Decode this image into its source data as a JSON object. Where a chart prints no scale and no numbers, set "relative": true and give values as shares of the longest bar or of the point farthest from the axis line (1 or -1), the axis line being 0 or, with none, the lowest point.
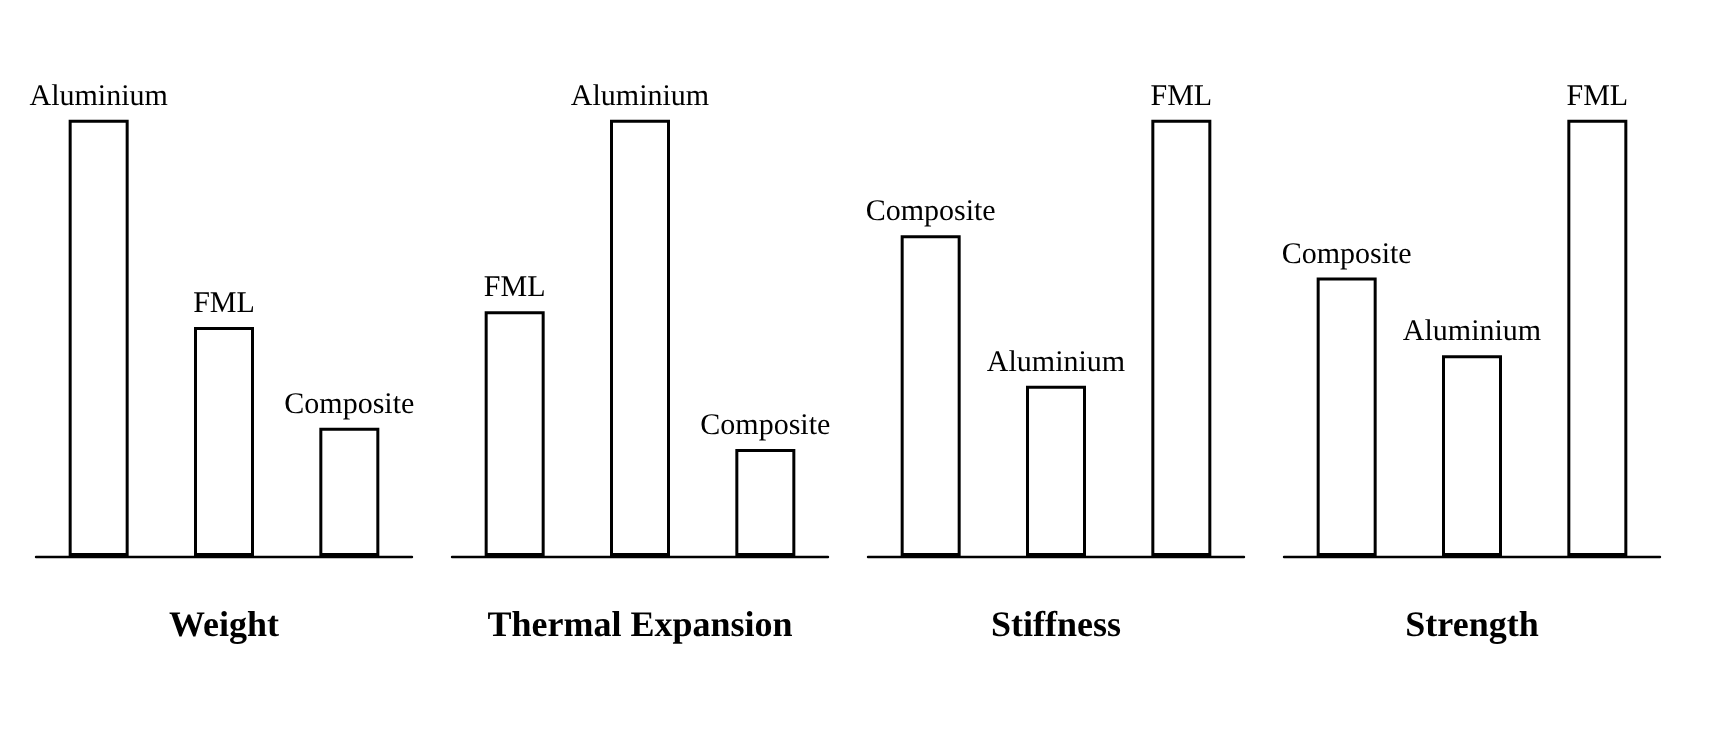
{
  "chart_data": [
    {
      "type": "bar",
      "relative": true,
      "stacked": true,
      "xlabel": "Weight",
      "categories": [
        null,
        null,
        null
      ],
      "grid": false,
      "legend": false,
      "series": [
        {
          "name": "Aluminium",
          "color": "#ffffff",
          "values": [
            1,
            null,
            null
          ]
        },
        {
          "name": "FML",
          "color": "#ffffff",
          "values": [
            null,
            0.525,
            null
          ]
        },
        {
          "name": "Composite",
          "color": "#ffffff",
          "values": [
            null,
            null,
            0.294
          ]
        }
      ]
    },
    {
      "type": "bar",
      "relative": true,
      "stacked": true,
      "xlabel": "Thermal Expansion",
      "categories": [
        null,
        null,
        null
      ],
      "grid": false,
      "legend": false,
      "series": [
        {
          "name": "FML",
          "color": "#ffffff",
          "values": [
            0.561,
            null,
            null
          ]
        },
        {
          "name": "Aluminium",
          "color": "#ffffff",
          "values": [
            null,
            1,
            null
          ]
        },
        {
          "name": "Composite",
          "color": "#ffffff",
          "values": [
            null,
            null,
            0.245
          ]
        }
      ]
    },
    {
      "type": "bar",
      "relative": true,
      "stacked": true,
      "xlabel": "Stiffness",
      "categories": [
        null,
        null,
        null
      ],
      "grid": false,
      "legend": false,
      "series": [
        {
          "name": "Composite",
          "color": "#ffffff",
          "values": [
            0.735,
            null,
            null
          ]
        },
        {
          "name": "Aluminium",
          "color": "#ffffff",
          "values": [
            null,
            0.39,
            null
          ]
        },
        {
          "name": "FML",
          "color": "#ffffff",
          "values": [
            null,
            null,
            1
          ]
        }
      ]
    },
    {
      "type": "bar",
      "relative": true,
      "stacked": true,
      "xlabel": "Strength",
      "categories": [
        null,
        null,
        null
      ],
      "grid": false,
      "legend": false,
      "series": [
        {
          "name": "Composite",
          "color": "#ffffff",
          "values": [
            0.638,
            null,
            null
          ]
        },
        {
          "name": "Aluminium",
          "color": "#ffffff",
          "values": [
            null,
            0.46,
            null
          ]
        },
        {
          "name": "FML",
          "color": "#ffffff",
          "values": [
            null,
            null,
            1
          ]
        }
      ]
    }
  ]
}
